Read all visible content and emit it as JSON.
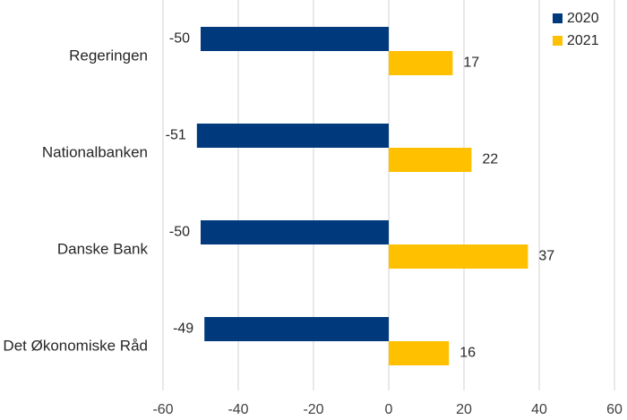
{
  "chart_data": {
    "type": "bar",
    "orientation": "horizontal",
    "categories": [
      "Regeringen",
      "Nationalbanken",
      "Danske Bank",
      "Det Økonomiske Råd"
    ],
    "series": [
      {
        "name": "2020",
        "values": [
          -50,
          -51,
          -50,
          -49
        ],
        "color": "#003A7D"
      },
      {
        "name": "2021",
        "values": [
          17,
          22,
          37,
          16
        ],
        "color": "#FFC000"
      }
    ],
    "xlim": [
      -60,
      60
    ],
    "x_ticks": [
      -60,
      -40,
      -20,
      0,
      20,
      40,
      60
    ],
    "x_tick_labels": [
      "-60",
      "-40",
      "-20",
      "0",
      "20",
      "40",
      "60"
    ],
    "data_labels": [
      [
        "-50",
        "-51",
        "-50",
        "-49"
      ],
      [
        "17",
        "22",
        "37",
        "16"
      ]
    ],
    "grid": "vertical",
    "legend": {
      "position": "top-right",
      "entries": [
        "2020",
        "2021"
      ]
    },
    "title": "",
    "xlabel": "",
    "ylabel": ""
  }
}
